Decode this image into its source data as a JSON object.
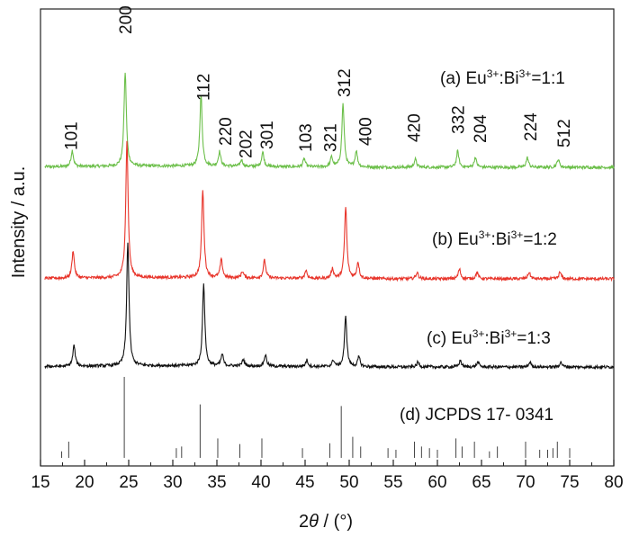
{
  "chart_data": {
    "type": "line",
    "title": "",
    "xlabel": {
      "prefix": "2",
      "symbol": "θ",
      "suffix": " / (°)"
    },
    "ylabel": "Intensity / a.u.",
    "xlim": [
      15,
      80
    ],
    "x_ticks": [
      15,
      20,
      25,
      30,
      35,
      40,
      45,
      50,
      55,
      60,
      65,
      70,
      75,
      80
    ],
    "y_ticks_shown": false,
    "grid": false,
    "colors": {
      "a": "#6cbf4a",
      "b": "#e8352b",
      "c": "#111111",
      "d": "#444444"
    },
    "series": [
      {
        "key": "a",
        "label_parts": [
          "(a) Eu",
          "3+",
          ":Bi",
          "3+",
          "=1:1"
        ],
        "baseline": 0,
        "peaks": [
          {
            "x": 18.6,
            "h": 0.1
          },
          {
            "x": 24.6,
            "h": 0.58
          },
          {
            "x": 33.2,
            "h": 0.44
          },
          {
            "x": 35.3,
            "h": 0.09
          },
          {
            "x": 37.8,
            "h": 0.04
          },
          {
            "x": 40.2,
            "h": 0.09
          },
          {
            "x": 44.9,
            "h": 0.05
          },
          {
            "x": 48.0,
            "h": 0.06
          },
          {
            "x": 49.3,
            "h": 0.39
          },
          {
            "x": 50.8,
            "h": 0.1
          },
          {
            "x": 57.5,
            "h": 0.05
          },
          {
            "x": 62.3,
            "h": 0.1
          },
          {
            "x": 64.3,
            "h": 0.06
          },
          {
            "x": 70.2,
            "h": 0.06
          },
          {
            "x": 73.7,
            "h": 0.05
          }
        ]
      },
      {
        "key": "b",
        "label_parts": [
          "(b) Eu",
          "3+",
          ":Bi",
          "3+",
          "=1:2"
        ],
        "baseline": 0,
        "peaks": [
          {
            "x": 18.7,
            "h": 0.17
          },
          {
            "x": 24.8,
            "h": 0.85
          },
          {
            "x": 33.4,
            "h": 0.54
          },
          {
            "x": 35.5,
            "h": 0.11
          },
          {
            "x": 37.9,
            "h": 0.04
          },
          {
            "x": 40.4,
            "h": 0.11
          },
          {
            "x": 45.1,
            "h": 0.05
          },
          {
            "x": 48.1,
            "h": 0.06
          },
          {
            "x": 49.6,
            "h": 0.44
          },
          {
            "x": 51.0,
            "h": 0.1
          },
          {
            "x": 57.7,
            "h": 0.04
          },
          {
            "x": 62.5,
            "h": 0.06
          },
          {
            "x": 64.5,
            "h": 0.04
          },
          {
            "x": 70.4,
            "h": 0.04
          },
          {
            "x": 73.9,
            "h": 0.04
          }
        ]
      },
      {
        "key": "c",
        "label_parts": [
          "(c) Eu",
          "3+",
          ":Bi",
          "3+",
          "=1:3"
        ],
        "baseline": 0,
        "peaks": [
          {
            "x": 18.8,
            "h": 0.13
          },
          {
            "x": 24.9,
            "h": 0.76
          },
          {
            "x": 33.5,
            "h": 0.5
          },
          {
            "x": 35.6,
            "h": 0.07
          },
          {
            "x": 38.0,
            "h": 0.04
          },
          {
            "x": 40.5,
            "h": 0.07
          },
          {
            "x": 45.2,
            "h": 0.04
          },
          {
            "x": 48.2,
            "h": 0.04
          },
          {
            "x": 49.6,
            "h": 0.31
          },
          {
            "x": 51.1,
            "h": 0.06
          },
          {
            "x": 57.8,
            "h": 0.03
          },
          {
            "x": 62.6,
            "h": 0.04
          },
          {
            "x": 64.6,
            "h": 0.03
          },
          {
            "x": 70.5,
            "h": 0.03
          },
          {
            "x": 74.0,
            "h": 0.03
          }
        ]
      }
    ],
    "reference": {
      "key": "d",
      "label": "(d) JCPDS 17- 0341",
      "lines": [
        {
          "x": 17.4,
          "h": 0.08
        },
        {
          "x": 18.2,
          "h": 0.2
        },
        {
          "x": 24.5,
          "h": 1.0
        },
        {
          "x": 30.4,
          "h": 0.12
        },
        {
          "x": 31.0,
          "h": 0.14
        },
        {
          "x": 33.1,
          "h": 0.66
        },
        {
          "x": 35.1,
          "h": 0.24
        },
        {
          "x": 37.6,
          "h": 0.17
        },
        {
          "x": 40.1,
          "h": 0.24
        },
        {
          "x": 44.7,
          "h": 0.12
        },
        {
          "x": 47.8,
          "h": 0.18
        },
        {
          "x": 49.1,
          "h": 0.64
        },
        {
          "x": 50.4,
          "h": 0.26
        },
        {
          "x": 51.3,
          "h": 0.14
        },
        {
          "x": 54.4,
          "h": 0.12
        },
        {
          "x": 55.3,
          "h": 0.1
        },
        {
          "x": 57.4,
          "h": 0.2
        },
        {
          "x": 58.2,
          "h": 0.14
        },
        {
          "x": 59.1,
          "h": 0.12
        },
        {
          "x": 60.0,
          "h": 0.1
        },
        {
          "x": 62.1,
          "h": 0.24
        },
        {
          "x": 62.8,
          "h": 0.14
        },
        {
          "x": 64.2,
          "h": 0.2
        },
        {
          "x": 65.9,
          "h": 0.08
        },
        {
          "x": 66.8,
          "h": 0.14
        },
        {
          "x": 70.0,
          "h": 0.2
        },
        {
          "x": 71.6,
          "h": 0.1
        },
        {
          "x": 72.5,
          "h": 0.1
        },
        {
          "x": 73.1,
          "h": 0.12
        },
        {
          "x": 73.6,
          "h": 0.2
        },
        {
          "x": 75.0,
          "h": 0.12
        }
      ]
    },
    "peak_labels": [
      {
        "text": "101",
        "x": 18.4
      },
      {
        "text": "200",
        "x": 24.6
      },
      {
        "text": "112",
        "x": 33.4
      },
      {
        "text": "220",
        "x": 35.9
      },
      {
        "text": "202",
        "x": 38.2
      },
      {
        "text": "301",
        "x": 40.6
      },
      {
        "text": "103",
        "x": 45.0
      },
      {
        "text": "321",
        "x": 47.8
      },
      {
        "text": "312",
        "x": 49.4
      },
      {
        "text": "400",
        "x": 51.8
      },
      {
        "text": "420",
        "x": 57.3
      },
      {
        "text": "332",
        "x": 62.3
      },
      {
        "text": "204",
        "x": 64.8
      },
      {
        "text": "224",
        "x": 70.5
      },
      {
        "text": "512",
        "x": 74.3
      }
    ]
  }
}
